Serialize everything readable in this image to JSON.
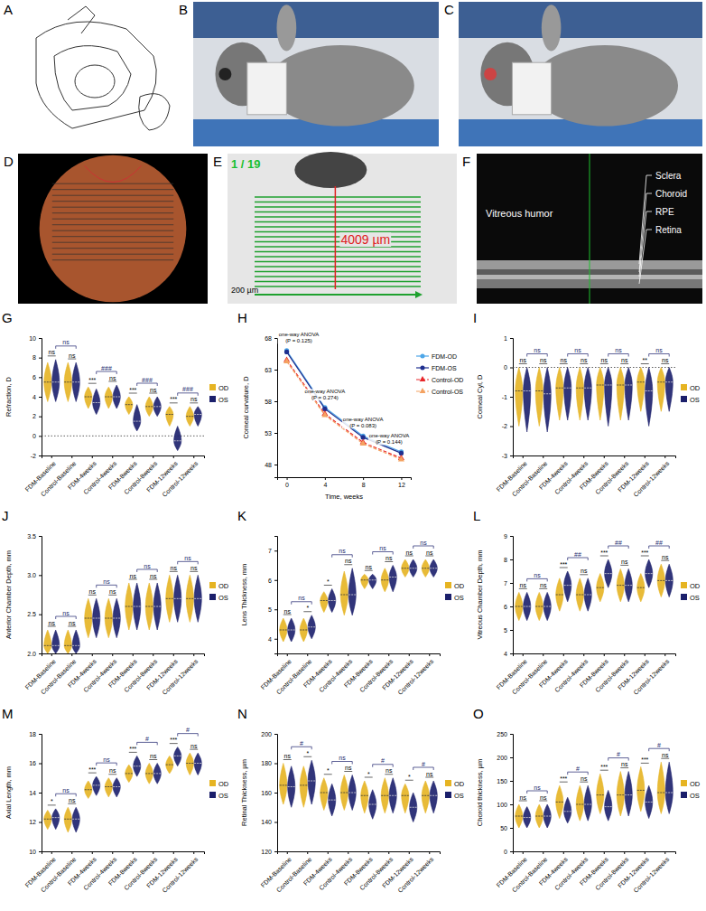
{
  "chart_data": [
    {
      "panel": "G",
      "type": "violin",
      "y_label": "Refraction, D",
      "categories": [
        "FDM-Baseline",
        "Control-Baseline",
        "FDM-4weeks",
        "Control-4weeks",
        "FDM-8weeks",
        "Control-8weeks",
        "FDM-12weeks",
        "Control-12weeks"
      ],
      "series": [
        {
          "name": "OD",
          "color": "#E6B422",
          "values": [
            5.5,
            5.5,
            4.0,
            4.0,
            3.2,
            3.0,
            2.2,
            2.0
          ],
          "min": [
            3.5,
            3.5,
            2.8,
            2.8,
            2.2,
            2.0,
            1.0,
            1.0
          ],
          "max": [
            7.5,
            7.5,
            5.0,
            5.0,
            4.0,
            4.0,
            3.0,
            3.0
          ]
        },
        {
          "name": "OS",
          "color": "#1B1F6B",
          "values": [
            5.5,
            5.5,
            3.4,
            4.0,
            1.5,
            3.0,
            -0.5,
            2.2
          ],
          "min": [
            3.5,
            3.5,
            2.2,
            2.8,
            0.5,
            2.0,
            -1.5,
            1.0
          ],
          "max": [
            7.8,
            7.5,
            4.8,
            5.2,
            3.2,
            4.0,
            1.0,
            3.0
          ]
        }
      ],
      "ylim": [
        -2,
        10
      ],
      "yticks": [
        -2,
        0,
        2,
        4,
        6,
        8,
        10
      ],
      "reference_y": 0,
      "pair_labels": [
        "ns",
        "ns",
        "***",
        "ns",
        "***",
        "ns",
        "***",
        "ns"
      ],
      "bracket_labels": [
        "ns",
        "###",
        "###",
        "###"
      ],
      "legend": "right"
    },
    {
      "panel": "H",
      "type": "line",
      "y_label": "Corneal curvature, D",
      "x_label": "Time, weeks",
      "x": [
        0,
        4,
        8,
        12
      ],
      "xlim": [
        -1,
        13
      ],
      "xticks": [
        0,
        4,
        8,
        12
      ],
      "ylim": [
        46,
        68
      ],
      "yticks": [
        48,
        53,
        58,
        63,
        68
      ],
      "series": [
        {
          "name": "FDM-OD",
          "color": "#4DA6E8",
          "marker": "circle",
          "line_style": "solid",
          "values": [
            66.0,
            57.0,
            52.5,
            50.0
          ]
        },
        {
          "name": "FDM-OS",
          "color": "#1F2F8F",
          "marker": "circle",
          "line_style": "solid",
          "values": [
            65.8,
            56.8,
            52.3,
            49.8
          ]
        },
        {
          "name": "Control-OD",
          "color": "#E8262A",
          "marker": "triangle",
          "line_style": "dashed",
          "values": [
            64.5,
            56.0,
            51.5,
            49.0
          ]
        },
        {
          "name": "Control-OS",
          "color": "#F4A261",
          "marker": "triangle",
          "line_style": "dashed",
          "values": [
            64.3,
            55.8,
            51.3,
            48.8
          ]
        }
      ],
      "annotations": [
        {
          "x": 0,
          "y": 66.8,
          "text": "one-way ANOVA",
          "p": "(P = 0.125)"
        },
        {
          "x": 4,
          "y": 57.8,
          "text": "one-way ANOVA",
          "p": "(P = 0.274)"
        },
        {
          "x": 8,
          "y": 53.4,
          "text": "one-way ANOVA",
          "p": "(P = 0.083)"
        },
        {
          "x": 12,
          "y": 50.8,
          "text": "one-way ANOVA",
          "p": "(P = 0.144)"
        }
      ],
      "legend": "right"
    },
    {
      "panel": "I",
      "type": "violin",
      "y_label": "Corneal Cyl, D",
      "categories": [
        "FDM-Baseline",
        "Control-Baseline",
        "FDM-4weeks",
        "Control-4weeks",
        "FDM-8weeks",
        "Control-8weeks",
        "FDM-12weeks",
        "Control-12weeks"
      ],
      "series": [
        {
          "name": "OD",
          "color": "#E6B422",
          "values": [
            -0.8,
            -0.8,
            -0.7,
            -0.7,
            -0.6,
            -0.6,
            -0.5,
            -0.5
          ],
          "min": [
            -2.0,
            -2.0,
            -1.8,
            -1.8,
            -1.8,
            -1.8,
            -1.5,
            -1.5
          ],
          "max": [
            0,
            0,
            0,
            0,
            0,
            0,
            0,
            0
          ]
        },
        {
          "name": "OS",
          "color": "#1B1F6B",
          "values": [
            -0.8,
            -0.9,
            -0.7,
            -0.7,
            -0.6,
            -0.6,
            -0.8,
            -0.5
          ],
          "min": [
            -2.2,
            -2.2,
            -1.8,
            -1.8,
            -2.0,
            -1.8,
            -2.0,
            -1.5
          ],
          "max": [
            0,
            0,
            0,
            0,
            0,
            0,
            0,
            0
          ]
        }
      ],
      "ylim": [
        -3,
        1
      ],
      "yticks": [
        -3,
        -2,
        -1,
        0,
        1
      ],
      "reference_y": 0,
      "pair_labels": [
        "ns",
        "ns",
        "ns",
        "ns",
        "ns",
        "ns",
        "**",
        "ns"
      ],
      "bracket_labels": [
        "ns",
        "ns",
        "ns",
        "ns"
      ],
      "legend": "right"
    },
    {
      "panel": "J",
      "type": "violin",
      "y_label": "Anterior Chamber Depth, mm",
      "categories": [
        "FDM-Baseline",
        "Control-Baseline",
        "FDM-4weeks",
        "Control-4weeks",
        "FDM-8weeks",
        "Control-8weeks",
        "FDM-12weeks",
        "Control-12weeks"
      ],
      "series": [
        {
          "name": "OD",
          "color": "#E6B422",
          "values": [
            2.1,
            2.1,
            2.45,
            2.45,
            2.6,
            2.6,
            2.7,
            2.7
          ],
          "min": [
            2.0,
            2.0,
            2.2,
            2.2,
            2.3,
            2.3,
            2.4,
            2.4
          ],
          "max": [
            2.3,
            2.3,
            2.7,
            2.7,
            2.9,
            2.9,
            3.0,
            3.0
          ]
        },
        {
          "name": "OS",
          "color": "#1B1F6B",
          "values": [
            2.1,
            2.1,
            2.45,
            2.45,
            2.6,
            2.6,
            2.7,
            2.7
          ],
          "min": [
            2.0,
            2.0,
            2.2,
            2.2,
            2.3,
            2.3,
            2.4,
            2.4
          ],
          "max": [
            2.3,
            2.3,
            2.7,
            2.7,
            2.9,
            2.9,
            3.0,
            3.0
          ]
        }
      ],
      "ylim": [
        2.0,
        3.5
      ],
      "yticks": [
        {
          "value": 2,
          "label": "2.0"
        },
        2.5,
        {
          "value": 3,
          "label": "3.0"
        },
        3.5
      ],
      "pair_labels": [
        "ns",
        "ns",
        "ns",
        "ns",
        "ns",
        "ns",
        "ns",
        "ns"
      ],
      "bracket_labels": [
        "ns",
        "ns",
        "ns",
        "ns"
      ],
      "legend": "right"
    },
    {
      "panel": "K",
      "type": "violin",
      "y_label": "Lens Thickness, mm",
      "categories": [
        "FDM-Baseline",
        "Control-Baseline",
        "FDM-4weeks",
        "Control-4weeks",
        "FDM-8weeks",
        "Control-8weeks",
        "FDM-12weeks",
        "Control-12weeks"
      ],
      "series": [
        {
          "name": "OD",
          "color": "#E6B422",
          "values": [
            4.3,
            4.3,
            5.3,
            5.5,
            6.0,
            6.0,
            6.4,
            6.4
          ],
          "min": [
            3.9,
            3.9,
            4.9,
            4.8,
            5.7,
            5.6,
            6.1,
            6.1
          ],
          "max": [
            4.7,
            4.7,
            5.6,
            6.3,
            6.2,
            6.4,
            6.7,
            6.7
          ]
        },
        {
          "name": "OS",
          "color": "#1B1F6B",
          "values": [
            4.3,
            4.4,
            5.3,
            5.5,
            6.0,
            6.1,
            6.4,
            6.4
          ],
          "min": [
            3.9,
            4.0,
            4.9,
            4.8,
            5.7,
            5.6,
            6.1,
            6.1
          ],
          "max": [
            4.7,
            4.8,
            5.7,
            6.4,
            6.2,
            6.5,
            6.7,
            6.7
          ]
        }
      ],
      "ylim": [
        3.5,
        7.5
      ],
      "yticks": [
        4,
        5,
        6,
        7
      ],
      "pair_labels": [
        "ns",
        "*",
        "*",
        "ns",
        "ns",
        "ns",
        "ns",
        "ns"
      ],
      "bracket_labels": [
        "ns",
        "ns",
        "ns",
        "ns"
      ],
      "legend": "right"
    },
    {
      "panel": "L",
      "type": "violin",
      "y_label": "Vitreous Chamber Depth, mm",
      "categories": [
        "FDM-Baseline",
        "Control-Baseline",
        "FDM-4weeks",
        "Control-4weeks",
        "FDM-8weeks",
        "Control-8weeks",
        "FDM-12weeks",
        "Control-12weeks"
      ],
      "series": [
        {
          "name": "OD",
          "color": "#E6B422",
          "values": [
            6.0,
            6.0,
            6.5,
            6.5,
            6.8,
            6.9,
            6.8,
            7.1
          ],
          "min": [
            5.4,
            5.4,
            5.8,
            5.8,
            6.2,
            6.2,
            6.2,
            6.4
          ],
          "max": [
            6.6,
            6.6,
            7.2,
            7.2,
            7.4,
            7.6,
            7.4,
            7.8
          ]
        },
        {
          "name": "OS",
          "color": "#1B1F6B",
          "values": [
            6.0,
            6.0,
            6.9,
            6.5,
            7.4,
            6.9,
            7.4,
            7.1
          ],
          "min": [
            5.4,
            5.4,
            6.2,
            5.8,
            6.8,
            6.2,
            6.8,
            6.4
          ],
          "max": [
            6.6,
            6.6,
            7.5,
            7.2,
            8.0,
            7.6,
            8.0,
            7.8
          ]
        }
      ],
      "ylim": [
        4,
        9
      ],
      "yticks": [
        4,
        5,
        6,
        7,
        8,
        9
      ],
      "pair_labels": [
        "ns",
        "ns",
        "***",
        "ns",
        "***",
        "ns",
        "***",
        "ns"
      ],
      "bracket_labels": [
        "ns",
        "##",
        "##",
        "##"
      ],
      "legend": "right"
    },
    {
      "panel": "M",
      "type": "violin",
      "y_label": "Axial Length, mm",
      "categories": [
        "FDM-Baseline",
        "Control-Baseline",
        "FDM-4weeks",
        "Control-4weeks",
        "FDM-8weeks",
        "Control-8weeks",
        "FDM-12weeks",
        "Control-12weeks"
      ],
      "series": [
        {
          "name": "OD",
          "color": "#E6B422",
          "values": [
            12.2,
            12.2,
            14.2,
            14.4,
            15.3,
            15.3,
            15.9,
            16.0
          ],
          "min": [
            11.5,
            11.3,
            13.6,
            13.7,
            14.7,
            14.6,
            15.3,
            15.2
          ],
          "max": [
            12.8,
            13.0,
            14.8,
            15.0,
            15.9,
            16.0,
            16.5,
            16.7
          ]
        },
        {
          "name": "OS",
          "color": "#1B1F6B",
          "values": [
            12.3,
            12.2,
            14.5,
            14.4,
            15.8,
            15.3,
            16.5,
            16.0
          ],
          "min": [
            11.5,
            11.3,
            13.8,
            13.7,
            15.1,
            14.6,
            15.8,
            15.2
          ],
          "max": [
            12.9,
            13.0,
            15.1,
            15.0,
            16.5,
            16.0,
            17.1,
            16.7
          ]
        }
      ],
      "ylim": [
        10,
        18
      ],
      "yticks": [
        10,
        12,
        14,
        16,
        18
      ],
      "pair_labels": [
        "*",
        "ns",
        "***",
        "ns",
        "***",
        "ns",
        "***",
        "ns"
      ],
      "bracket_labels": [
        "ns",
        "ns",
        "#",
        "#"
      ],
      "legend": "right"
    },
    {
      "panel": "N",
      "type": "violin",
      "y_label": "Retinal Thickness, µm",
      "categories": [
        "FDM-Baseline",
        "Control-Baseline",
        "FDM-4weeks",
        "Control-4weeks",
        "FDM-8weeks",
        "Control-8weeks",
        "FDM-12weeks",
        "Control-12weeks"
      ],
      "series": [
        {
          "name": "OD",
          "color": "#E6B422",
          "values": [
            165,
            165,
            160,
            160,
            158,
            158,
            158,
            158
          ],
          "min": [
            152,
            150,
            148,
            148,
            146,
            146,
            146,
            146
          ],
          "max": [
            180,
            178,
            170,
            172,
            168,
            170,
            166,
            168
          ]
        },
        {
          "name": "OS",
          "color": "#1B1F6B",
          "values": [
            164,
            168,
            155,
            160,
            152,
            158,
            150,
            158
          ],
          "min": [
            150,
            152,
            144,
            148,
            142,
            146,
            140,
            146
          ],
          "max": [
            178,
            182,
            166,
            172,
            162,
            170,
            160,
            168
          ]
        }
      ],
      "ylim": [
        120,
        200
      ],
      "yticks": [
        120,
        140,
        160,
        180,
        200
      ],
      "pair_labels": [
        "ns",
        "*",
        "*",
        "ns",
        "*",
        "ns",
        "*",
        "ns"
      ],
      "bracket_labels": [
        "#",
        "ns",
        "#",
        "#"
      ],
      "legend": "right"
    },
    {
      "panel": "O",
      "type": "violin",
      "y_label": "Choroid thickness, µm",
      "categories": [
        "FDM-Baseline",
        "Control-Baseline",
        "FDM-4weeks",
        "Control-4weeks",
        "FDM-8weeks",
        "Control-8weeks",
        "FDM-12weeks",
        "Control-12weeks"
      ],
      "series": [
        {
          "name": "OD",
          "color": "#E6B422",
          "values": [
            75,
            75,
            105,
            100,
            120,
            120,
            130,
            125
          ],
          "min": [
            50,
            50,
            70,
            65,
            80,
            75,
            85,
            80
          ],
          "max": [
            100,
            100,
            140,
            140,
            165,
            170,
            180,
            190
          ]
        },
        {
          "name": "OS",
          "color": "#1B1F6B",
          "values": [
            72,
            75,
            85,
            100,
            95,
            120,
            105,
            125
          ],
          "min": [
            50,
            50,
            60,
            65,
            65,
            75,
            70,
            80
          ],
          "max": [
            95,
            100,
            115,
            140,
            130,
            170,
            140,
            190
          ]
        }
      ],
      "ylim": [
        0,
        250
      ],
      "yticks": [
        0,
        50,
        100,
        150,
        200,
        250
      ],
      "pair_labels": [
        "ns",
        "ns",
        "***",
        "ns",
        "***",
        "ns",
        "***",
        "ns"
      ],
      "bracket_labels": [
        "ns",
        "#",
        "#",
        "#"
      ],
      "legend": "right"
    }
  ],
  "image_panels": [
    {
      "label": "A"
    },
    {
      "label": "B"
    },
    {
      "label": "C"
    },
    {
      "label": "D"
    },
    {
      "label": "E",
      "counter": "1 / 19",
      "measure": "4009 µm",
      "scale_bar": "200 µm"
    },
    {
      "label": "F",
      "region": "Vitreous humor",
      "layers": [
        "Sclera",
        "Choroid",
        "RPE",
        "Retina"
      ]
    }
  ]
}
